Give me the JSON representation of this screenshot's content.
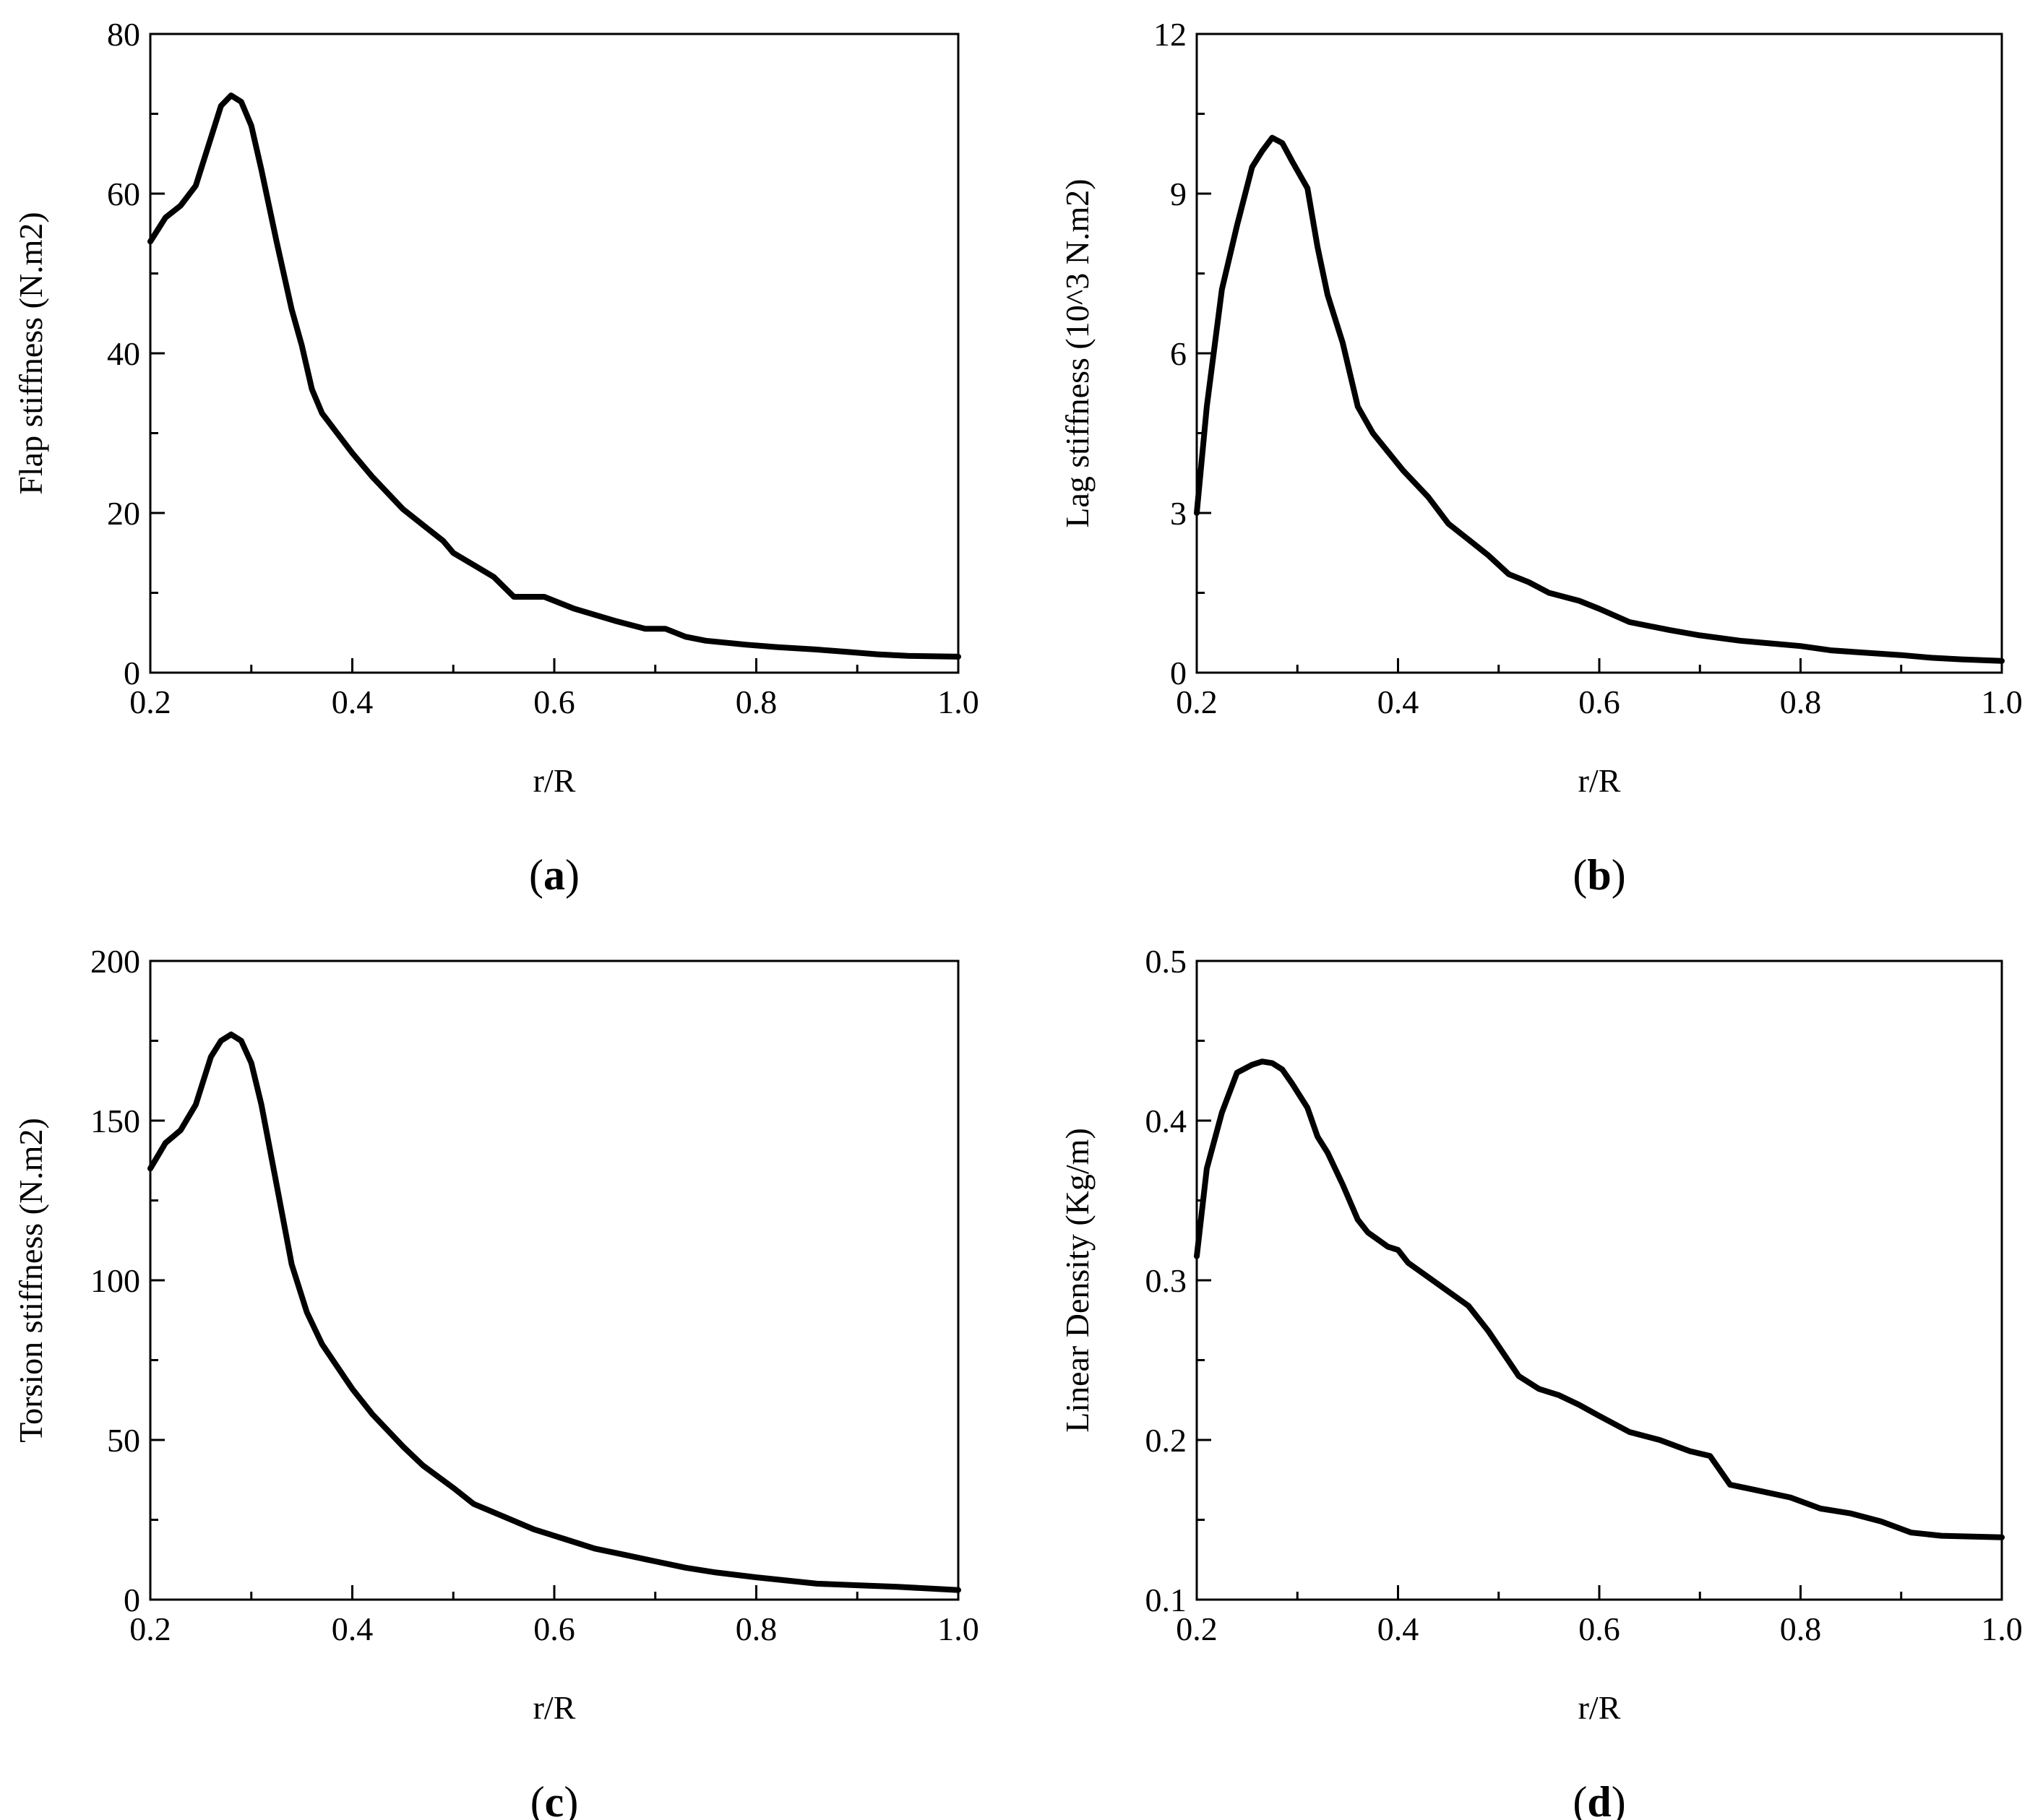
{
  "chart_data": [
    {
      "panel": "(a)",
      "type": "line",
      "xlabel": "r/R",
      "ylabel": "Flap stiffness (N.m2)",
      "xlim": [
        0.2,
        1.0
      ],
      "ylim": [
        0,
        80
      ],
      "xticks": [
        "0.2",
        "0.4",
        "0.6",
        "0.8",
        "1.0"
      ],
      "yticks": [
        "0",
        "20",
        "40",
        "60",
        "80"
      ],
      "grid": false,
      "x": [
        0.2,
        0.215,
        0.23,
        0.245,
        0.26,
        0.27,
        0.28,
        0.29,
        0.3,
        0.31,
        0.325,
        0.34,
        0.35,
        0.36,
        0.37,
        0.385,
        0.4,
        0.42,
        0.45,
        0.47,
        0.49,
        0.5,
        0.52,
        0.54,
        0.56,
        0.58,
        0.59,
        0.62,
        0.66,
        0.69,
        0.71,
        0.73,
        0.75,
        0.79,
        0.82,
        0.86,
        0.89,
        0.92,
        0.95,
        1.0
      ],
      "y": [
        54,
        57,
        58.5,
        61,
        67,
        71,
        72.3,
        71.5,
        68.5,
        63,
        54,
        45.5,
        41,
        35.5,
        32.5,
        30,
        27.5,
        24.5,
        20.5,
        18.5,
        16.5,
        15,
        13.5,
        12,
        9.5,
        9.5,
        9.5,
        8,
        6.5,
        5.5,
        5.5,
        4.5,
        4,
        3.5,
        3.2,
        2.9,
        2.6,
        2.3,
        2.1,
        2.0
      ]
    },
    {
      "panel": "(b)",
      "type": "line",
      "xlabel": "r/R",
      "ylabel": "Lag stiffness (10^3 N.m2)",
      "xlim": [
        0.2,
        1.0
      ],
      "ylim": [
        0,
        12
      ],
      "xticks": [
        "0.2",
        "0.4",
        "0.6",
        "0.8",
        "1.0"
      ],
      "yticks": [
        "0",
        "3",
        "6",
        "9",
        "12"
      ],
      "grid": false,
      "x": [
        0.2,
        0.21,
        0.225,
        0.24,
        0.255,
        0.265,
        0.275,
        0.285,
        0.295,
        0.31,
        0.32,
        0.33,
        0.345,
        0.36,
        0.375,
        0.39,
        0.405,
        0.43,
        0.45,
        0.47,
        0.49,
        0.51,
        0.53,
        0.55,
        0.57,
        0.58,
        0.6,
        0.63,
        0.67,
        0.7,
        0.74,
        0.77,
        0.8,
        0.83,
        0.86,
        0.9,
        0.93,
        0.96,
        1.0
      ],
      "y": [
        3.0,
        5.0,
        7.2,
        8.4,
        9.5,
        9.8,
        10.05,
        9.95,
        9.6,
        9.1,
        8.0,
        7.1,
        6.2,
        5.0,
        4.5,
        4.15,
        3.8,
        3.3,
        2.8,
        2.5,
        2.2,
        1.85,
        1.7,
        1.5,
        1.4,
        1.35,
        1.2,
        0.95,
        0.8,
        0.7,
        0.6,
        0.55,
        0.5,
        0.42,
        0.38,
        0.33,
        0.28,
        0.25,
        0.22
      ]
    },
    {
      "panel": "(c)",
      "type": "line",
      "xlabel": "r/R",
      "ylabel": "Torsion stiffness (N.m2)",
      "xlim": [
        0.2,
        1.0
      ],
      "ylim": [
        0,
        200
      ],
      "xticks": [
        "0.2",
        "0.4",
        "0.6",
        "0.8",
        "1.0"
      ],
      "yticks": [
        "0",
        "50",
        "100",
        "150",
        "200"
      ],
      "grid": false,
      "x": [
        0.2,
        0.215,
        0.23,
        0.245,
        0.26,
        0.27,
        0.28,
        0.29,
        0.3,
        0.31,
        0.325,
        0.34,
        0.355,
        0.37,
        0.385,
        0.4,
        0.42,
        0.45,
        0.47,
        0.5,
        0.52,
        0.55,
        0.58,
        0.61,
        0.64,
        0.67,
        0.7,
        0.73,
        0.76,
        0.8,
        0.83,
        0.86,
        0.9,
        0.94,
        0.97,
        1.0
      ],
      "y": [
        135,
        143,
        147,
        155,
        170,
        175,
        177,
        175,
        168,
        155,
        130,
        105,
        90,
        80,
        73,
        66,
        58,
        48,
        42,
        35,
        30,
        26,
        22,
        19,
        16,
        14,
        12,
        10,
        8.5,
        7,
        6,
        5,
        4.5,
        4,
        3.5,
        3
      ]
    },
    {
      "panel": "(d)",
      "type": "line",
      "xlabel": "r/R",
      "ylabel": "Linear Density (Kg/m)",
      "xlim": [
        0.2,
        1.0
      ],
      "ylim": [
        0.1,
        0.5
      ],
      "xticks": [
        "0.2",
        "0.4",
        "0.6",
        "0.8",
        "1.0"
      ],
      "yticks": [
        "0.1",
        "0.2",
        "0.3",
        "0.4",
        "0.5"
      ],
      "grid": false,
      "x": [
        0.2,
        0.21,
        0.225,
        0.24,
        0.255,
        0.265,
        0.275,
        0.285,
        0.295,
        0.31,
        0.32,
        0.33,
        0.345,
        0.36,
        0.37,
        0.39,
        0.4,
        0.41,
        0.43,
        0.45,
        0.47,
        0.49,
        0.52,
        0.54,
        0.56,
        0.58,
        0.6,
        0.63,
        0.66,
        0.69,
        0.71,
        0.73,
        0.76,
        0.79,
        0.82,
        0.85,
        0.88,
        0.91,
        0.94,
        1.0
      ],
      "y": [
        0.315,
        0.37,
        0.405,
        0.43,
        0.435,
        0.437,
        0.436,
        0.432,
        0.423,
        0.408,
        0.39,
        0.38,
        0.36,
        0.338,
        0.33,
        0.321,
        0.319,
        0.311,
        0.302,
        0.293,
        0.284,
        0.268,
        0.24,
        0.232,
        0.228,
        0.222,
        0.215,
        0.205,
        0.2,
        0.193,
        0.19,
        0.172,
        0.168,
        0.164,
        0.157,
        0.154,
        0.149,
        0.142,
        0.14,
        0.139
      ]
    }
  ]
}
